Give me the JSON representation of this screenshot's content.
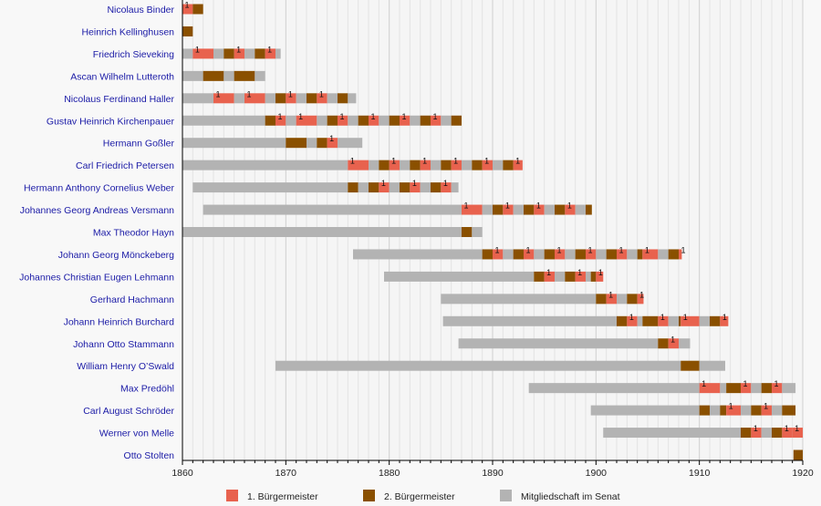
{
  "chart_data": {
    "type": "timeline",
    "title": "",
    "xlabel": "",
    "ylabel": "",
    "xlim": [
      1860,
      1920
    ],
    "x_ticks": [
      1860,
      1870,
      1880,
      1890,
      1900,
      1910,
      1920
    ],
    "grid": "vertical, yearly",
    "colors": {
      "first_mayor": "#e8624e",
      "second_mayor": "#8a5000",
      "senate": "#b3b3b3",
      "label": "#1a1aa6",
      "marker": "#111111"
    },
    "legend": {
      "placement": "bottom",
      "entries": [
        {
          "key": "first_mayor",
          "label": "1. Bürgermeister"
        },
        {
          "key": "second_mayor",
          "label": "2. Bürgermeister"
        },
        {
          "key": "senate",
          "label": "Mitgliedschaft im Senat"
        }
      ]
    },
    "marker_text": "1",
    "rows": [
      {
        "name": "Nicolaus Binder",
        "segments": [
          [
            "first_mayor",
            1860,
            1861
          ],
          [
            "second_mayor",
            1861,
            1862
          ]
        ]
      },
      {
        "name": "Heinrich Kellinghusen",
        "segments": [
          [
            "second_mayor",
            1860,
            1861
          ]
        ]
      },
      {
        "name": "Friedrich Sieveking",
        "segments": [
          [
            "senate",
            1860,
            1861
          ],
          [
            "first_mayor",
            1861,
            1863
          ],
          [
            "senate",
            1863,
            1864
          ],
          [
            "second_mayor",
            1864,
            1865
          ],
          [
            "first_mayor",
            1865,
            1866
          ],
          [
            "senate",
            1866,
            1867
          ],
          [
            "second_mayor",
            1867,
            1868
          ],
          [
            "first_mayor",
            1868,
            1869
          ],
          [
            "senate",
            1869,
            1869.5
          ]
        ]
      },
      {
        "name": "Ascan Wilhelm Lutteroth",
        "segments": [
          [
            "senate",
            1860,
            1862
          ],
          [
            "second_mayor",
            1862,
            1864
          ],
          [
            "senate",
            1864,
            1865
          ],
          [
            "second_mayor",
            1865,
            1867
          ],
          [
            "senate",
            1867,
            1868
          ]
        ]
      },
      {
        "name": "Nicolaus Ferdinand Haller",
        "segments": [
          [
            "senate",
            1860,
            1863
          ],
          [
            "first_mayor",
            1863,
            1865
          ],
          [
            "senate",
            1865,
            1866
          ],
          [
            "first_mayor",
            1866,
            1868
          ],
          [
            "senate",
            1868,
            1869
          ],
          [
            "second_mayor",
            1869,
            1870
          ],
          [
            "first_mayor",
            1870,
            1871
          ],
          [
            "senate",
            1871,
            1872
          ],
          [
            "second_mayor",
            1872,
            1873
          ],
          [
            "first_mayor",
            1873,
            1874
          ],
          [
            "senate",
            1874,
            1875
          ],
          [
            "second_mayor",
            1875,
            1876
          ],
          [
            "senate",
            1876,
            1876.8
          ]
        ]
      },
      {
        "name": "Gustav Heinrich Kirchenpauer",
        "segments": [
          [
            "senate",
            1860,
            1868
          ],
          [
            "second_mayor",
            1868,
            1869
          ],
          [
            "first_mayor",
            1869,
            1870
          ],
          [
            "senate",
            1870,
            1871
          ],
          [
            "first_mayor",
            1871,
            1873
          ],
          [
            "senate",
            1873,
            1874
          ],
          [
            "second_mayor",
            1874,
            1875
          ],
          [
            "first_mayor",
            1875,
            1876
          ],
          [
            "senate",
            1876,
            1877
          ],
          [
            "second_mayor",
            1877,
            1878
          ],
          [
            "first_mayor",
            1878,
            1879
          ],
          [
            "senate",
            1879,
            1880
          ],
          [
            "second_mayor",
            1880,
            1881
          ],
          [
            "first_mayor",
            1881,
            1882
          ],
          [
            "senate",
            1882,
            1883
          ],
          [
            "second_mayor",
            1883,
            1884
          ],
          [
            "first_mayor",
            1884,
            1885
          ],
          [
            "senate",
            1885,
            1886
          ],
          [
            "second_mayor",
            1886,
            1887
          ]
        ]
      },
      {
        "name": "Hermann Goßler",
        "segments": [
          [
            "senate",
            1860,
            1870
          ],
          [
            "second_mayor",
            1870,
            1872
          ],
          [
            "senate",
            1872,
            1873
          ],
          [
            "second_mayor",
            1873,
            1874
          ],
          [
            "first_mayor",
            1874,
            1875
          ],
          [
            "senate",
            1875,
            1877.4
          ]
        ]
      },
      {
        "name": "Carl Friedrich Petersen",
        "segments": [
          [
            "senate",
            1860,
            1876
          ],
          [
            "first_mayor",
            1876,
            1878
          ],
          [
            "senate",
            1878,
            1879
          ],
          [
            "second_mayor",
            1879,
            1880
          ],
          [
            "first_mayor",
            1880,
            1881
          ],
          [
            "senate",
            1881,
            1882
          ],
          [
            "second_mayor",
            1882,
            1883
          ],
          [
            "first_mayor",
            1883,
            1884
          ],
          [
            "senate",
            1884,
            1885
          ],
          [
            "second_mayor",
            1885,
            1886
          ],
          [
            "first_mayor",
            1886,
            1887
          ],
          [
            "senate",
            1887,
            1888
          ],
          [
            "second_mayor",
            1888,
            1889
          ],
          [
            "first_mayor",
            1889,
            1890
          ],
          [
            "senate",
            1890,
            1891
          ],
          [
            "second_mayor",
            1891,
            1892
          ],
          [
            "first_mayor",
            1892,
            1892.9
          ]
        ]
      },
      {
        "name": "Hermann Anthony Cornelius Weber",
        "segments": [
          [
            "senate",
            1861,
            1876
          ],
          [
            "second_mayor",
            1876,
            1877
          ],
          [
            "senate",
            1877,
            1878
          ],
          [
            "second_mayor",
            1878,
            1879
          ],
          [
            "first_mayor",
            1879,
            1880
          ],
          [
            "senate",
            1880,
            1881
          ],
          [
            "second_mayor",
            1881,
            1882
          ],
          [
            "first_mayor",
            1882,
            1883
          ],
          [
            "senate",
            1883,
            1884
          ],
          [
            "second_mayor",
            1884,
            1885
          ],
          [
            "first_mayor",
            1885,
            1886
          ],
          [
            "senate",
            1886,
            1886.7
          ]
        ]
      },
      {
        "name": "Johannes Georg Andreas Versmann",
        "segments": [
          [
            "senate",
            1862,
            1887
          ],
          [
            "first_mayor",
            1887,
            1889
          ],
          [
            "senate",
            1889,
            1890
          ],
          [
            "second_mayor",
            1890,
            1891
          ],
          [
            "first_mayor",
            1891,
            1892
          ],
          [
            "senate",
            1892,
            1893
          ],
          [
            "second_mayor",
            1893,
            1894
          ],
          [
            "first_mayor",
            1894,
            1895
          ],
          [
            "senate",
            1895,
            1896
          ],
          [
            "second_mayor",
            1896,
            1897
          ],
          [
            "first_mayor",
            1897,
            1898
          ],
          [
            "senate",
            1898,
            1899
          ],
          [
            "second_mayor",
            1899,
            1899.6
          ]
        ]
      },
      {
        "name": "Max Theodor Hayn",
        "segments": [
          [
            "senate",
            1860,
            1887
          ],
          [
            "second_mayor",
            1887,
            1888
          ],
          [
            "senate",
            1888,
            1889
          ]
        ]
      },
      {
        "name": "Johann Georg Mönckeberg",
        "segments": [
          [
            "senate",
            1876.5,
            1889
          ],
          [
            "second_mayor",
            1889,
            1890
          ],
          [
            "first_mayor",
            1890,
            1891
          ],
          [
            "senate",
            1891,
            1892
          ],
          [
            "second_mayor",
            1892,
            1893
          ],
          [
            "first_mayor",
            1893,
            1894
          ],
          [
            "senate",
            1894,
            1895
          ],
          [
            "second_mayor",
            1895,
            1896
          ],
          [
            "first_mayor",
            1896,
            1897
          ],
          [
            "senate",
            1897,
            1898
          ],
          [
            "second_mayor",
            1898,
            1899
          ],
          [
            "first_mayor",
            1899,
            1900
          ],
          [
            "senate",
            1900,
            1901
          ],
          [
            "second_mayor",
            1901,
            1902
          ],
          [
            "first_mayor",
            1902,
            1903
          ],
          [
            "senate",
            1903,
            1904
          ],
          [
            "second_mayor",
            1904,
            1904.5
          ],
          [
            "first_mayor",
            1904.5,
            1906
          ],
          [
            "senate",
            1906,
            1907
          ],
          [
            "second_mayor",
            1907,
            1908
          ],
          [
            "first_mayor",
            1908,
            1908.3
          ]
        ]
      },
      {
        "name": "Johannes Christian Eugen Lehmann",
        "segments": [
          [
            "senate",
            1879.5,
            1894
          ],
          [
            "second_mayor",
            1894,
            1895
          ],
          [
            "first_mayor",
            1895,
            1896
          ],
          [
            "senate",
            1896,
            1897
          ],
          [
            "second_mayor",
            1897,
            1898
          ],
          [
            "first_mayor",
            1898,
            1899
          ],
          [
            "senate",
            1899,
            1899.5
          ],
          [
            "second_mayor",
            1899.5,
            1900
          ],
          [
            "first_mayor",
            1900,
            1900.7
          ]
        ]
      },
      {
        "name": "Gerhard Hachmann",
        "segments": [
          [
            "senate",
            1885,
            1900
          ],
          [
            "second_mayor",
            1900,
            1901
          ],
          [
            "first_mayor",
            1901,
            1902
          ],
          [
            "senate",
            1902,
            1903
          ],
          [
            "second_mayor",
            1903,
            1904
          ],
          [
            "first_mayor",
            1904,
            1904.6
          ]
        ]
      },
      {
        "name": "Johann Heinrich Burchard",
        "segments": [
          [
            "senate",
            1885.2,
            1902
          ],
          [
            "second_mayor",
            1902,
            1903
          ],
          [
            "first_mayor",
            1903,
            1904
          ],
          [
            "senate",
            1904,
            1904.5
          ],
          [
            "second_mayor",
            1904.5,
            1906
          ],
          [
            "first_mayor",
            1906,
            1907
          ],
          [
            "senate",
            1907,
            1908
          ],
          [
            "second_mayor",
            1908,
            1908.2
          ],
          [
            "first_mayor",
            1908.2,
            1910
          ],
          [
            "senate",
            1910,
            1911
          ],
          [
            "second_mayor",
            1911,
            1912
          ],
          [
            "first_mayor",
            1912,
            1912.8
          ]
        ]
      },
      {
        "name": "Johann Otto Stammann",
        "segments": [
          [
            "senate",
            1886.7,
            1906
          ],
          [
            "second_mayor",
            1906,
            1907
          ],
          [
            "first_mayor",
            1907,
            1908
          ],
          [
            "senate",
            1908,
            1909.1
          ]
        ]
      },
      {
        "name": "William Henry O’Swald",
        "segments": [
          [
            "senate",
            1869,
            1908.2
          ],
          [
            "second_mayor",
            1908.2,
            1910
          ],
          [
            "senate",
            1910,
            1912.5
          ]
        ]
      },
      {
        "name": "Max Predöhl",
        "segments": [
          [
            "senate",
            1893.5,
            1910
          ],
          [
            "first_mayor",
            1910,
            1912
          ],
          [
            "senate",
            1912,
            1912.6
          ],
          [
            "second_mayor",
            1912.6,
            1914
          ],
          [
            "first_mayor",
            1914,
            1915
          ],
          [
            "senate",
            1915,
            1916
          ],
          [
            "second_mayor",
            1916,
            1917
          ],
          [
            "first_mayor",
            1917,
            1918
          ],
          [
            "senate",
            1918,
            1919.3
          ]
        ]
      },
      {
        "name": "Carl August Schröder",
        "segments": [
          [
            "senate",
            1899.5,
            1910
          ],
          [
            "second_mayor",
            1910,
            1911
          ],
          [
            "senate",
            1911,
            1912
          ],
          [
            "second_mayor",
            1912,
            1912.6
          ],
          [
            "first_mayor",
            1912.6,
            1914
          ],
          [
            "senate",
            1914,
            1915
          ],
          [
            "second_mayor",
            1915,
            1916
          ],
          [
            "first_mayor",
            1916,
            1917
          ],
          [
            "senate",
            1917,
            1918
          ],
          [
            "second_mayor",
            1918,
            1919.3
          ]
        ]
      },
      {
        "name": "Werner von Melle",
        "segments": [
          [
            "senate",
            1900.7,
            1914
          ],
          [
            "second_mayor",
            1914,
            1915
          ],
          [
            "first_mayor",
            1915,
            1916
          ],
          [
            "senate",
            1916,
            1917
          ],
          [
            "second_mayor",
            1917,
            1918
          ],
          [
            "first_mayor",
            1918,
            1919
          ],
          [
            "first_mayor",
            1919,
            1920
          ]
        ]
      },
      {
        "name": "Otto Stolten",
        "segments": [
          [
            "second_mayor",
            1919.1,
            1920
          ]
        ]
      }
    ]
  }
}
